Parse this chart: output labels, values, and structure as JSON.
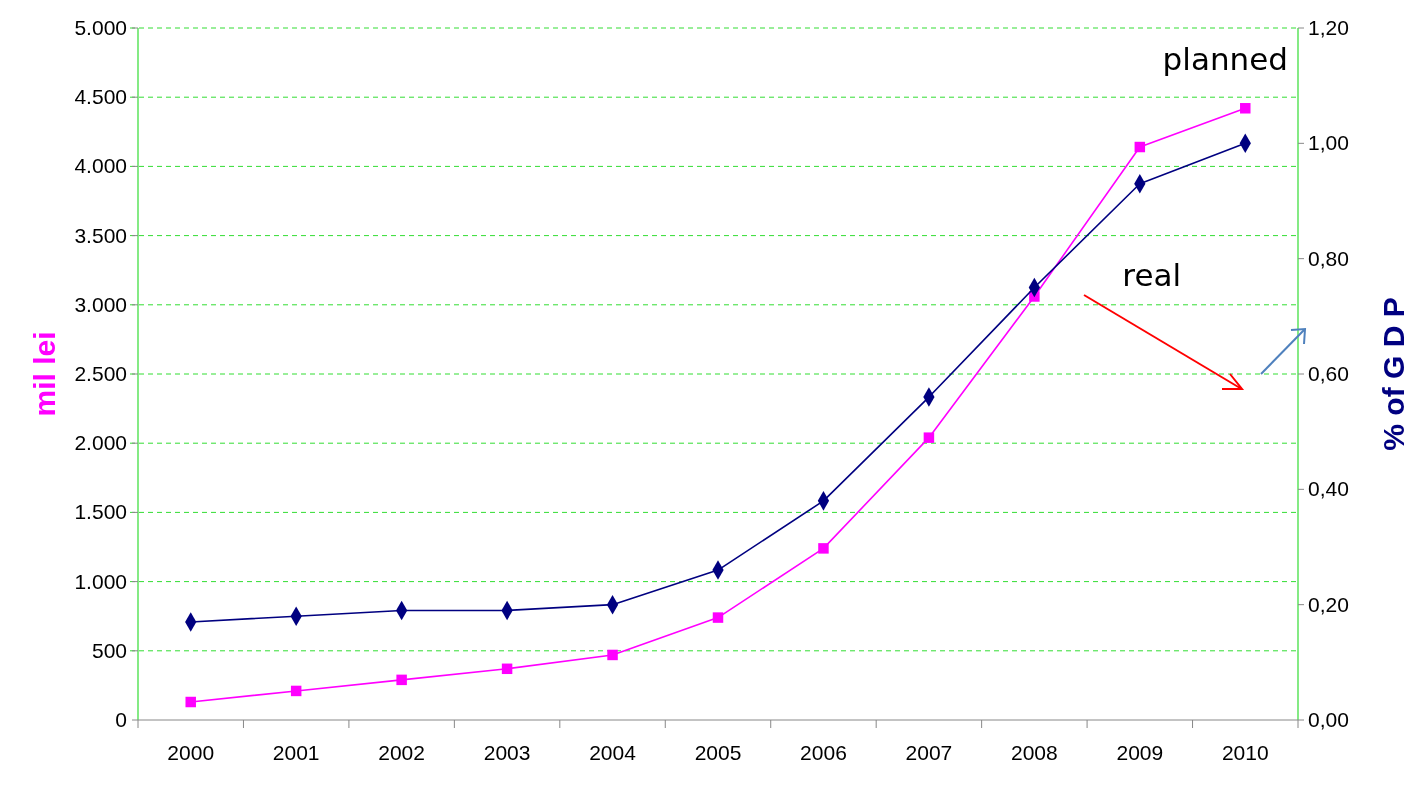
{
  "chart_data": {
    "type": "line",
    "categories": [
      "2000",
      "2001",
      "2002",
      "2003",
      "2004",
      "2005",
      "2006",
      "2007",
      "2008",
      "2009",
      "2010"
    ],
    "ylabel": "mil lei",
    "y2label": "% of G D P",
    "series": [
      {
        "name": "planned",
        "color": "#ff00ff",
        "marker": "square",
        "values": [
          130,
          210,
          290,
          370,
          470,
          740,
          1240,
          2040,
          3060,
          4140,
          4420
        ]
      },
      {
        "name": "real",
        "color": "#000080",
        "marker": "diamond",
        "axis": "y2",
        "values": [
          0.17,
          0.18,
          0.19,
          0.19,
          0.2,
          0.26,
          0.38,
          0.56,
          0.75,
          0.93,
          1.0
        ]
      }
    ],
    "ylim": [
      0,
      5000
    ],
    "yticks": [
      {
        "value": 0,
        "label": "0"
      },
      {
        "value": 500,
        "label": "500"
      },
      {
        "value": 1000,
        "label": "1.000"
      },
      {
        "value": 1500,
        "label": "1.500"
      },
      {
        "value": 2000,
        "label": "2.000"
      },
      {
        "value": 2500,
        "label": "2.500"
      },
      {
        "value": 3000,
        "label": "3.000"
      },
      {
        "value": 3500,
        "label": "3.500"
      },
      {
        "value": 4000,
        "label": "4.000"
      },
      {
        "value": 4500,
        "label": "4.500"
      },
      {
        "value": 5000,
        "label": "5.000"
      }
    ],
    "y2lim": [
      0,
      1.2
    ],
    "y2ticks": [
      {
        "value": 0,
        "label": "0,00"
      },
      {
        "value": 0.2,
        "label": "0,20"
      },
      {
        "value": 0.4,
        "label": "0,40"
      },
      {
        "value": 0.6,
        "label": "0,60"
      },
      {
        "value": 0.8,
        "label": "0,80"
      },
      {
        "value": 1.0,
        "label": "1,00"
      },
      {
        "value": 1.2,
        "label": "1,20"
      }
    ],
    "grid": "y"
  }
}
